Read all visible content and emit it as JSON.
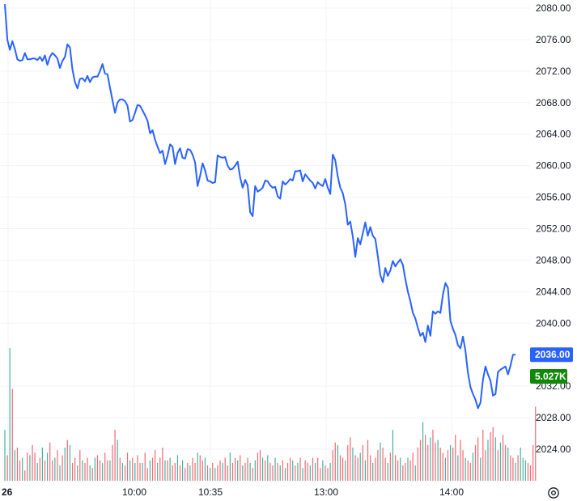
{
  "chart_data": {
    "type": "line",
    "x_tick_labels": [
      "26",
      "10:00",
      "10:35",
      "13:00",
      "14:00"
    ],
    "ylim": [
      2020,
      2082
    ],
    "y_ticks": [
      "2080.00",
      "2076.00",
      "2072.00",
      "2068.00",
      "2064.00",
      "2060.00",
      "2056.00",
      "2052.00",
      "2048.00",
      "2044.00",
      "2040.00",
      "2032.00",
      "2028.00",
      "2024.00"
    ],
    "grid": true,
    "series": [
      {
        "values": [
          2080.5,
          2076.0,
          2074.7,
          2075.8,
          2074.8,
          2073.5,
          2073.3,
          2073.4,
          2074.3,
          2073.5,
          2073.5,
          2073.6,
          2073.6,
          2073.4,
          2073.8,
          2073.3,
          2074.0,
          2072.8,
          2073.8,
          2074.3,
          2074.0,
          2073.6,
          2072.4,
          2073.3,
          2073.8,
          2075.4,
          2075.0,
          2072.2,
          2070.6,
          2069.8,
          2071.0,
          2071.1,
          2070.7,
          2071.4,
          2070.6,
          2071.2,
          2071.3,
          2071.3,
          2072.0,
          2072.9,
          2071.7,
          2071.6,
          2069.9,
          2068.3,
          2066.7,
          2068.0,
          2068.4,
          2068.4,
          2068.2,
          2067.6,
          2065.6,
          2065.8,
          2066.7,
          2067.7,
          2067.6,
          2067.0,
          2066.4,
          2065.7,
          2064.1,
          2064.5,
          2063.3,
          2062.4,
          2061.6,
          2061.9,
          2060.2,
          2061.3,
          2062.7,
          2062.4,
          2060.2,
          2061.6,
          2062.2,
          2061.0,
          2060.9,
          2062.1,
          2062.0,
          2061.4,
          2060.4,
          2057.4,
          2058.7,
          2060.3,
          2059.4,
          2058.1,
          2058.0,
          2057.8,
          2057.9,
          2061.3,
          2061.1,
          2061.0,
          2061.1,
          2060.0,
          2059.5,
          2059.6,
          2060.0,
          2060.5,
          2058.5,
          2057.2,
          2058.2,
          2057.5,
          2054.1,
          2053.6,
          2057.4,
          2056.7,
          2056.9,
          2057.2,
          2058.1,
          2058.0,
          2057.5,
          2057.2,
          2057.3,
          2056.1,
          2055.8,
          2058.0,
          2057.6,
          2057.9,
          2058.3,
          2058.1,
          2059.3,
          2059.3,
          2059.4,
          2058.0,
          2058.9,
          2058.5,
          2058.1,
          2057.8,
          2057.1,
          2057.9,
          2057.6,
          2057.4,
          2058.3,
          2057.2,
          2056.4,
          2061.4,
          2060.7,
          2058.6,
          2057.2,
          2056.5,
          2055.1,
          2052.5,
          2052.9,
          2051.0,
          2048.4,
          2050.8,
          2050.0,
          2051.4,
          2052.8,
          2051.1,
          2052.2,
          2051.1,
          2050.7,
          2048.5,
          2046.1,
          2045.2,
          2047.0,
          2046.0,
          2046.7,
          2047.9,
          2047.2,
          2047.7,
          2048.1,
          2047.4,
          2045.6,
          2044.0,
          2042.8,
          2041.3,
          2040.6,
          2039.4,
          2038.4,
          2038.8,
          2037.6,
          2039.7,
          2038.4,
          2041.5,
          2041.2,
          2041.5,
          2041.3,
          2043.6,
          2045.1,
          2044.5,
          2040.3,
          2039.3,
          2038.5,
          2037.2,
          2036.8,
          2038.3,
          2036.5,
          2033.7,
          2031.9,
          2031.0,
          2030.3,
          2029.2,
          2029.9,
          2032.8,
          2034.5,
          2033.5,
          2032.7,
          2030.8,
          2031.0,
          2033.8,
          2034.1,
          2034.3,
          2034.5,
          2033.5,
          2034.6,
          2036.0,
          2036.0
        ]
      }
    ],
    "last_price_label": "2036.00",
    "volume_label": "5.027K",
    "volume": {
      "values": [
        2000,
        1000,
        5200,
        3600,
        1200,
        1300,
        800,
        900,
        400,
        1100,
        1000,
        1400,
        1100,
        700,
        900,
        1300,
        800,
        1100,
        1500,
        800,
        900,
        1200,
        600,
        1000,
        1300,
        1600,
        1400,
        700,
        900,
        600,
        1200,
        800,
        700,
        900,
        600,
        500,
        900,
        1000,
        800,
        700,
        1100,
        800,
        800,
        1400,
        2000,
        1600,
        900,
        700,
        600,
        1100,
        800,
        900,
        700,
        1000,
        700,
        700,
        1100,
        500,
        800,
        900,
        1200,
        700,
        900,
        1300,
        800,
        800,
        900,
        600,
        700,
        1000,
        600,
        800,
        500,
        700,
        600,
        900,
        700,
        1100,
        1000,
        800,
        900,
        600,
        500,
        700,
        500,
        600,
        800,
        700,
        900,
        600,
        1100,
        700,
        900,
        800,
        1000,
        600,
        700,
        900,
        700,
        500,
        800,
        1100,
        1200,
        900,
        800,
        1000,
        700,
        600,
        900,
        700,
        600,
        800,
        500,
        700,
        900,
        800,
        600,
        700,
        900,
        500,
        800,
        700,
        600,
        900,
        700,
        900,
        500,
        800,
        600,
        500,
        700,
        1200,
        1500,
        1400,
        1000,
        900,
        800,
        1400,
        1700,
        1300,
        1000,
        900,
        1100,
        1400,
        800,
        1600,
        1000,
        700,
        900,
        1200,
        1500,
        1300,
        900,
        700,
        1100,
        2000,
        1000,
        800,
        900,
        600,
        700,
        900,
        800,
        1100,
        600,
        1300,
        1600,
        2300,
        1800,
        1400,
        1700,
        2000,
        1500,
        1600,
        1300,
        1100,
        900,
        1200,
        1400,
        1300,
        1800,
        1000,
        1600,
        1200,
        900,
        800,
        700,
        1100,
        1400,
        1700,
        900,
        2000,
        1200,
        1600,
        1900,
        2100,
        1700,
        1200,
        1500,
        1800,
        1400,
        1300,
        1000,
        900,
        700,
        1000,
        1300,
        900,
        800,
        700,
        600,
        1400,
        2900
      ],
      "colors": [
        "#089981",
        "#f23645",
        "#089981",
        "#f23645",
        "#089981",
        "#f23645",
        "#f23645",
        "#089981",
        "#f23645",
        "#f23645",
        "#089981",
        "#f23645",
        "#f23645",
        "#089981",
        "#f23645",
        "#089981",
        "#f23645",
        "#089981",
        "#f23645",
        "#f23645",
        "#089981",
        "#f23645",
        "#089981",
        "#f23645",
        "#089981",
        "#f23645",
        "#089981",
        "#f23645",
        "#f23645",
        "#089981",
        "#f23645",
        "#089981",
        "#f23645",
        "#f23645",
        "#089981",
        "#f23645",
        "#089981",
        "#f23645",
        "#f23645",
        "#089981",
        "#f23645",
        "#f23645",
        "#089981",
        "#f23645",
        "#f23645",
        "#089981",
        "#f23645",
        "#089981",
        "#f23645",
        "#f23645",
        "#089981",
        "#f23645",
        "#089981",
        "#f23645",
        "#f23645",
        "#089981",
        "#f23645",
        "#f23645",
        "#089981",
        "#f23645",
        "#f23645",
        "#089981",
        "#f23645",
        "#f23645",
        "#089981",
        "#f23645",
        "#089981",
        "#f23645",
        "#f23645",
        "#089981",
        "#f23645",
        "#089981",
        "#f23645",
        "#f23645",
        "#089981",
        "#f23645",
        "#f23645",
        "#089981",
        "#f23645",
        "#f23645",
        "#089981",
        "#f23645",
        "#089981",
        "#f23645",
        "#089981",
        "#f23645",
        "#f23645",
        "#089981",
        "#f23645",
        "#f23645",
        "#089981",
        "#f23645",
        "#f23645",
        "#089981",
        "#f23645",
        "#089981",
        "#f23645",
        "#f23645",
        "#089981",
        "#f23645",
        "#089981",
        "#f23645",
        "#f23645",
        "#089981",
        "#f23645",
        "#089981",
        "#f23645",
        "#f23645",
        "#089981",
        "#f23645",
        "#089981",
        "#f23645",
        "#089981",
        "#f23645",
        "#f23645",
        "#089981",
        "#f23645",
        "#089981",
        "#f23645",
        "#089981",
        "#f23645",
        "#f23645",
        "#089981",
        "#f23645",
        "#089981",
        "#f23645",
        "#f23645",
        "#089981",
        "#f23645",
        "#f23645",
        "#089981",
        "#f23645",
        "#f23645",
        "#089981",
        "#f23645",
        "#f23645",
        "#089981",
        "#f23645",
        "#f23645",
        "#089981",
        "#f23645",
        "#f23645",
        "#089981",
        "#f23645",
        "#089981",
        "#f23645",
        "#f23645",
        "#089981",
        "#f23645",
        "#f23645",
        "#089981",
        "#f23645",
        "#f23645",
        "#089981",
        "#f23645",
        "#089981",
        "#f23645",
        "#f23645",
        "#089981",
        "#f23645",
        "#f23645",
        "#089981",
        "#f23645",
        "#f23645",
        "#089981",
        "#f23645",
        "#f23645",
        "#089981",
        "#f23645",
        "#f23645",
        "#089981",
        "#f23645",
        "#f23645",
        "#089981",
        "#f23645",
        "#f23645",
        "#089981",
        "#f23645",
        "#089981",
        "#f23645",
        "#f23645",
        "#089981",
        "#f23645",
        "#f23645",
        "#089981",
        "#f23645",
        "#f23645",
        "#089981",
        "#f23645",
        "#f23645",
        "#089981",
        "#f23645",
        "#f23645",
        "#089981",
        "#f23645",
        "#f23645",
        "#089981",
        "#f23645",
        "#089981",
        "#f23645",
        "#f23645",
        "#089981",
        "#f23645",
        "#f23645",
        "#089981",
        "#f23645",
        "#089981",
        "#089981",
        "#089981"
      ]
    }
  },
  "colors": {
    "line": "#2962ff",
    "grid": "#f0f3fa",
    "up": "#089981",
    "down": "#f23645",
    "price_badge": "#2962ff",
    "volume_badge": "#138808"
  },
  "icons": {
    "settings": "gear-icon"
  }
}
